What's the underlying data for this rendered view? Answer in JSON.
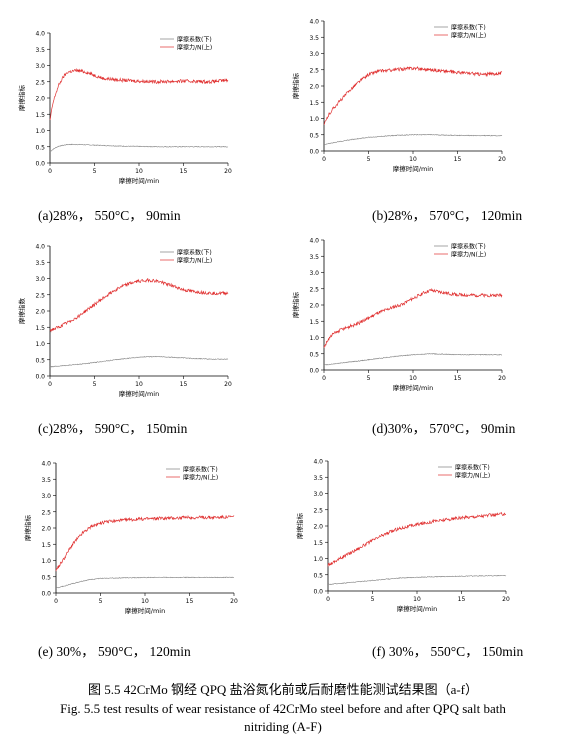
{
  "chart_data": [
    {
      "type": "line",
      "caption": "(a)28%， 550°C， 90min",
      "xlabel": "摩擦时间/min",
      "ylabel": "摩擦指标",
      "xlim": [
        0,
        20
      ],
      "ylim": [
        0,
        4.0
      ],
      "xticks": [
        "0",
        "5",
        "10",
        "15",
        "20"
      ],
      "yticks": [
        "0.0",
        "0.5",
        "1.0",
        "1.5",
        "2.0",
        "2.5",
        "3.0",
        "3.5",
        "4.0"
      ],
      "legend": [
        "摩擦系数(下)",
        "摩擦力/N(上)"
      ],
      "series": [
        {
          "name": "摩擦系数(下)",
          "color": "#808080",
          "x": [
            0,
            0.5,
            1,
            2,
            3,
            5,
            8,
            12,
            16,
            20
          ],
          "y": [
            0.35,
            0.45,
            0.52,
            0.57,
            0.57,
            0.55,
            0.52,
            0.5,
            0.5,
            0.5
          ]
        },
        {
          "name": "摩擦力/N(上)",
          "color": "#e03030",
          "x": [
            0,
            0.3,
            0.6,
            1,
            1.5,
            2,
            3,
            4,
            5,
            6,
            8,
            10,
            12,
            15,
            18,
            20
          ],
          "y": [
            1.3,
            1.8,
            2.1,
            2.4,
            2.65,
            2.8,
            2.85,
            2.8,
            2.7,
            2.6,
            2.55,
            2.52,
            2.5,
            2.52,
            2.5,
            2.55
          ]
        }
      ]
    },
    {
      "type": "line",
      "caption": "(b)28%， 570°C， 120min",
      "xlabel": "摩擦时间/min",
      "ylabel": "摩擦指标",
      "xlim": [
        0,
        20
      ],
      "ylim": [
        0,
        4.0
      ],
      "xticks": [
        "0",
        "5",
        "10",
        "15",
        "20"
      ],
      "yticks": [
        "0.0",
        "0.5",
        "1.0",
        "1.5",
        "2.0",
        "2.5",
        "3.0",
        "3.5",
        "4.0"
      ],
      "legend": [
        "摩擦系数(下)",
        "摩擦力/N(上)"
      ],
      "series": [
        {
          "name": "摩擦系数(下)",
          "color": "#808080",
          "x": [
            0,
            1,
            2,
            3,
            5,
            8,
            10,
            12,
            15,
            20
          ],
          "y": [
            0.2,
            0.25,
            0.3,
            0.35,
            0.42,
            0.48,
            0.5,
            0.5,
            0.48,
            0.47
          ]
        },
        {
          "name": "摩擦力/N(上)",
          "color": "#e03030",
          "x": [
            0,
            0.5,
            1,
            2,
            3,
            4,
            5,
            6,
            8,
            10,
            12,
            15,
            18,
            20
          ],
          "y": [
            0.8,
            1.1,
            1.3,
            1.6,
            1.9,
            2.15,
            2.35,
            2.45,
            2.5,
            2.55,
            2.5,
            2.42,
            2.35,
            2.4
          ]
        }
      ]
    },
    {
      "type": "line",
      "caption": "(c)28%， 590°C， 150min",
      "xlabel": "摩擦时间/min",
      "ylabel": "摩擦指数",
      "xlim": [
        0,
        20
      ],
      "ylim": [
        0,
        4.0
      ],
      "xticks": [
        "0",
        "5",
        "10",
        "15",
        "20"
      ],
      "yticks": [
        "0.0",
        "0.5",
        "1.0",
        "1.5",
        "2.0",
        "2.5",
        "3.0",
        "3.5",
        "4.0"
      ],
      "legend": [
        "摩擦系数(下)",
        "摩擦力/N(上)"
      ],
      "series": [
        {
          "name": "摩擦系数(下)",
          "color": "#808080",
          "x": [
            0,
            2,
            4,
            6,
            8,
            10,
            12,
            14,
            16,
            18,
            20
          ],
          "y": [
            0.28,
            0.33,
            0.38,
            0.45,
            0.52,
            0.58,
            0.6,
            0.57,
            0.54,
            0.52,
            0.52
          ]
        },
        {
          "name": "摩擦力/N(上)",
          "color": "#e03030",
          "x": [
            0,
            1,
            2,
            3,
            4,
            5,
            6,
            7,
            8,
            9,
            10,
            11,
            12,
            13,
            14,
            15,
            16,
            18,
            20
          ],
          "y": [
            1.4,
            1.5,
            1.65,
            1.8,
            2.0,
            2.2,
            2.4,
            2.6,
            2.75,
            2.85,
            2.92,
            2.95,
            2.92,
            2.85,
            2.75,
            2.65,
            2.6,
            2.55,
            2.55
          ]
        }
      ]
    },
    {
      "type": "line",
      "caption": "(d)30%， 570°C， 90min",
      "xlabel": "摩擦时间/min",
      "ylabel": "摩擦指标",
      "xlim": [
        0,
        20
      ],
      "ylim": [
        0,
        4.0
      ],
      "xticks": [
        "0",
        "5",
        "10",
        "15",
        "20"
      ],
      "yticks": [
        "0.0",
        "0.5",
        "1.0",
        "1.5",
        "2.0",
        "2.5",
        "3.0",
        "3.5",
        "4.0"
      ],
      "legend": [
        "摩擦系数(下)",
        "摩擦力/N(上)"
      ],
      "series": [
        {
          "name": "摩擦系数(下)",
          "color": "#808080",
          "x": [
            0,
            2,
            4,
            6,
            8,
            10,
            12,
            14,
            16,
            20
          ],
          "y": [
            0.15,
            0.22,
            0.28,
            0.35,
            0.42,
            0.47,
            0.5,
            0.48,
            0.47,
            0.47
          ]
        },
        {
          "name": "摩擦力/N(上)",
          "color": "#e03030",
          "x": [
            0,
            0.5,
            1,
            2,
            3,
            4,
            5,
            6,
            7,
            8,
            9,
            10,
            11,
            12,
            13,
            14,
            16,
            18,
            20
          ],
          "y": [
            0.7,
            0.95,
            1.1,
            1.25,
            1.35,
            1.45,
            1.6,
            1.75,
            1.85,
            1.95,
            2.05,
            2.2,
            2.35,
            2.45,
            2.4,
            2.35,
            2.3,
            2.3,
            2.3
          ]
        }
      ]
    },
    {
      "type": "line",
      "caption": "(e) 30%， 590°C， 120min",
      "xlabel": "摩擦时间/min",
      "ylabel": "摩擦指标",
      "xlim": [
        0,
        20
      ],
      "ylim": [
        0,
        4.0
      ],
      "xticks": [
        "0",
        "5",
        "10",
        "15",
        "20"
      ],
      "yticks": [
        "0.0",
        "0.5",
        "1.0",
        "1.5",
        "2.0",
        "2.5",
        "3.0",
        "3.5",
        "4.0"
      ],
      "legend": [
        "摩擦系数(下)",
        "摩擦力/N(上)"
      ],
      "series": [
        {
          "name": "摩擦系数(下)",
          "color": "#808080",
          "x": [
            0,
            1,
            2,
            3,
            4,
            5,
            8,
            12,
            16,
            20
          ],
          "y": [
            0.15,
            0.22,
            0.3,
            0.37,
            0.42,
            0.45,
            0.47,
            0.48,
            0.48,
            0.48
          ]
        },
        {
          "name": "摩擦力/N(上)",
          "color": "#e03030",
          "x": [
            0,
            0.5,
            1,
            1.5,
            2,
            2.5,
            3,
            4,
            5,
            6,
            8,
            10,
            12,
            15,
            18,
            20
          ],
          "y": [
            0.7,
            0.9,
            1.1,
            1.35,
            1.55,
            1.7,
            1.85,
            2.05,
            2.15,
            2.2,
            2.25,
            2.28,
            2.3,
            2.32,
            2.33,
            2.35
          ]
        }
      ]
    },
    {
      "type": "line",
      "caption": "(f) 30%， 550°C， 150min",
      "xlabel": "摩擦时间/min",
      "ylabel": "摩擦指标",
      "xlim": [
        0,
        20
      ],
      "ylim": [
        0,
        4.0
      ],
      "xticks": [
        "0",
        "5",
        "10",
        "15",
        "20"
      ],
      "yticks": [
        "0.0",
        "0.5",
        "1.0",
        "1.5",
        "2.0",
        "2.5",
        "3.0",
        "3.5",
        "4.0"
      ],
      "legend": [
        "摩擦系数(下)",
        "摩擦力/N(上)"
      ],
      "series": [
        {
          "name": "摩擦系数(下)",
          "color": "#808080",
          "x": [
            0,
            2,
            4,
            6,
            8,
            10,
            12,
            14,
            16,
            18,
            20
          ],
          "y": [
            0.2,
            0.25,
            0.3,
            0.35,
            0.4,
            0.42,
            0.44,
            0.45,
            0.46,
            0.47,
            0.47
          ]
        },
        {
          "name": "摩擦力/N(上)",
          "color": "#e03030",
          "x": [
            0,
            1,
            2,
            3,
            4,
            5,
            6,
            7,
            8,
            10,
            12,
            14,
            16,
            18,
            20
          ],
          "y": [
            0.8,
            0.95,
            1.1,
            1.25,
            1.4,
            1.55,
            1.7,
            1.82,
            1.92,
            2.05,
            2.15,
            2.22,
            2.28,
            2.33,
            2.38
          ]
        }
      ]
    }
  ],
  "figure_caption": {
    "zh": "图 5.5 42CrMo 钢经 QPQ 盐浴氮化前或后耐磨性能测试结果图（a-f）",
    "en_line1": "Fig. 5.5 test results of wear resistance of 42CrMo steel before and after QPQ salt bath",
    "en_line2": "nitriding (A-F)"
  }
}
